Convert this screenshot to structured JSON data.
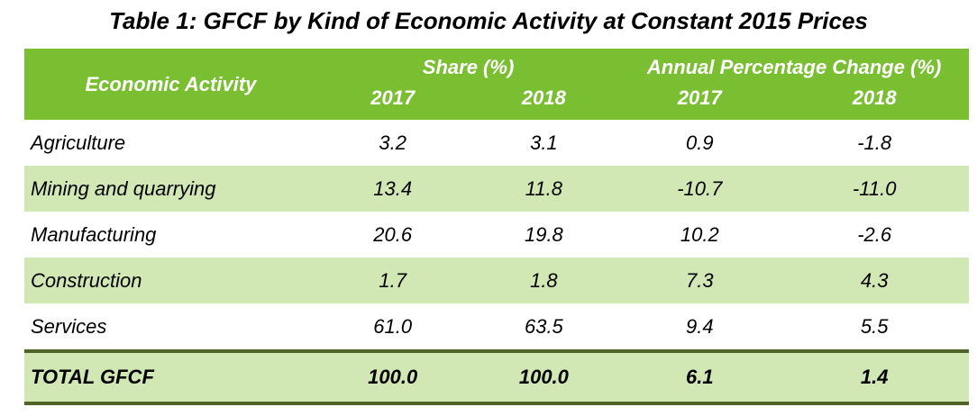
{
  "title": "Table 1: GFCF by Kind of Economic Activity at Constant 2015 Prices",
  "table": {
    "header": {
      "activity_label": "Economic Activity",
      "share_group": "Share (%)",
      "change_group": "Annual Percentage Change (%)",
      "years": [
        "2017",
        "2018",
        "2017",
        "2018"
      ]
    },
    "rows": [
      {
        "activity": "Agriculture",
        "values": [
          "3.2",
          "3.1",
          "0.9",
          "-1.8"
        ]
      },
      {
        "activity": "Mining and quarrying",
        "values": [
          "13.4",
          "11.8",
          "-10.7",
          "-11.0"
        ]
      },
      {
        "activity": "Manufacturing",
        "values": [
          "20.6",
          "19.8",
          "10.2",
          "-2.6"
        ]
      },
      {
        "activity": "Construction",
        "values": [
          "1.7",
          "1.8",
          "7.3",
          "4.3"
        ]
      },
      {
        "activity": "Services",
        "values": [
          "61.0",
          "63.5",
          "9.4",
          "5.5"
        ]
      }
    ],
    "total": {
      "activity": "TOTAL GFCF",
      "values": [
        "100.0",
        "100.0",
        "6.1",
        "1.4"
      ]
    }
  },
  "colors": {
    "header_bg": "#7ABE32",
    "stripe_bg": "#D1E7B4",
    "total_border": "#4F6228",
    "header_text": "#FFFFFF",
    "body_text": "#000000"
  },
  "chart_data": {
    "type": "table",
    "title": "Table 1: GFCF by Kind of Economic Activity at Constant 2015 Prices",
    "columns": [
      "Economic Activity",
      "Share (%) 2017",
      "Share (%) 2018",
      "Annual Percentage Change (%) 2017",
      "Annual Percentage Change (%) 2018"
    ],
    "rows": [
      [
        "Agriculture",
        3.2,
        3.1,
        0.9,
        -1.8
      ],
      [
        "Mining and quarrying",
        13.4,
        11.8,
        -10.7,
        -11.0
      ],
      [
        "Manufacturing",
        20.6,
        19.8,
        10.2,
        -2.6
      ],
      [
        "Construction",
        1.7,
        1.8,
        7.3,
        4.3
      ],
      [
        "Services",
        61.0,
        63.5,
        9.4,
        5.5
      ],
      [
        "TOTAL GFCF",
        100.0,
        100.0,
        6.1,
        1.4
      ]
    ]
  }
}
